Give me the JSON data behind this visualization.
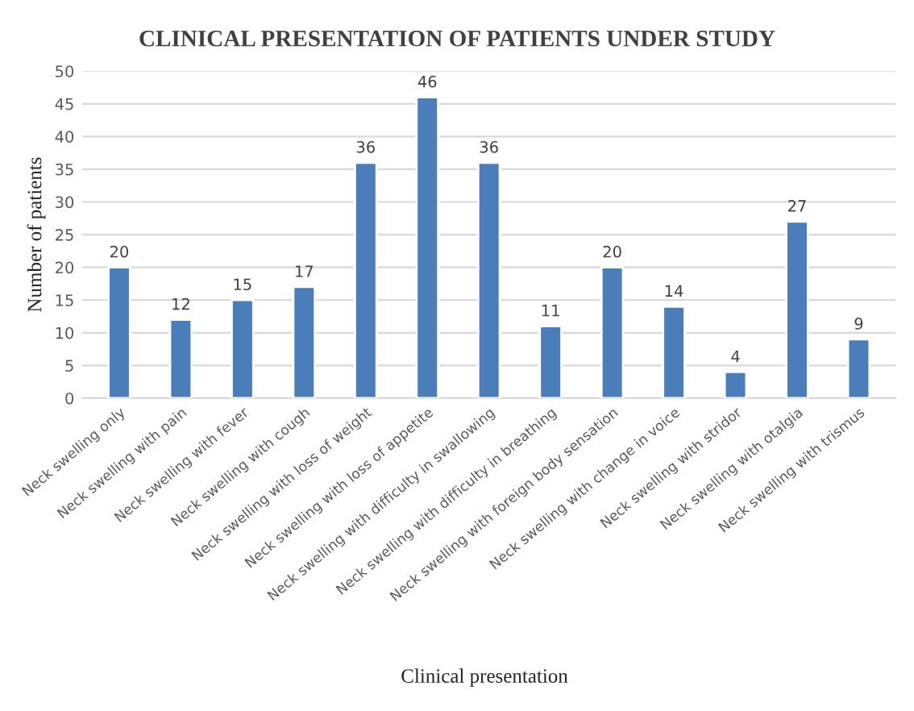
{
  "chart_data": {
    "type": "bar",
    "title": "CLINICAL PRESENTATION OF PATIENTS UNDER STUDY",
    "xlabel": "Clinical presentation",
    "ylabel": "Number of patients",
    "categories": [
      "Neck swelling only",
      "Neck swelling with pain",
      "Neck swelling with fever",
      "Neck swelling with cough",
      "Neck swelling with loss of weight",
      "Neck swelling with loss of appetite",
      "Neck swelling with difficulty in swallowing",
      "Neck swelling with difficulty in breathing",
      "Neck swelling with foreign body sensation",
      "Neck swelling with change in voice",
      "Neck swelling with stridor",
      "Neck swelling with otalgia",
      "Neck swelling with trismus"
    ],
    "values": [
      20,
      12,
      15,
      17,
      36,
      46,
      36,
      11,
      20,
      14,
      4,
      27,
      9
    ],
    "color": "#4a7ebb",
    "ylim": [
      0,
      50
    ],
    "yticks": [
      0,
      5,
      10,
      15,
      20,
      25,
      30,
      35,
      40,
      45,
      50
    ],
    "grid": "y",
    "data_labels": true
  }
}
